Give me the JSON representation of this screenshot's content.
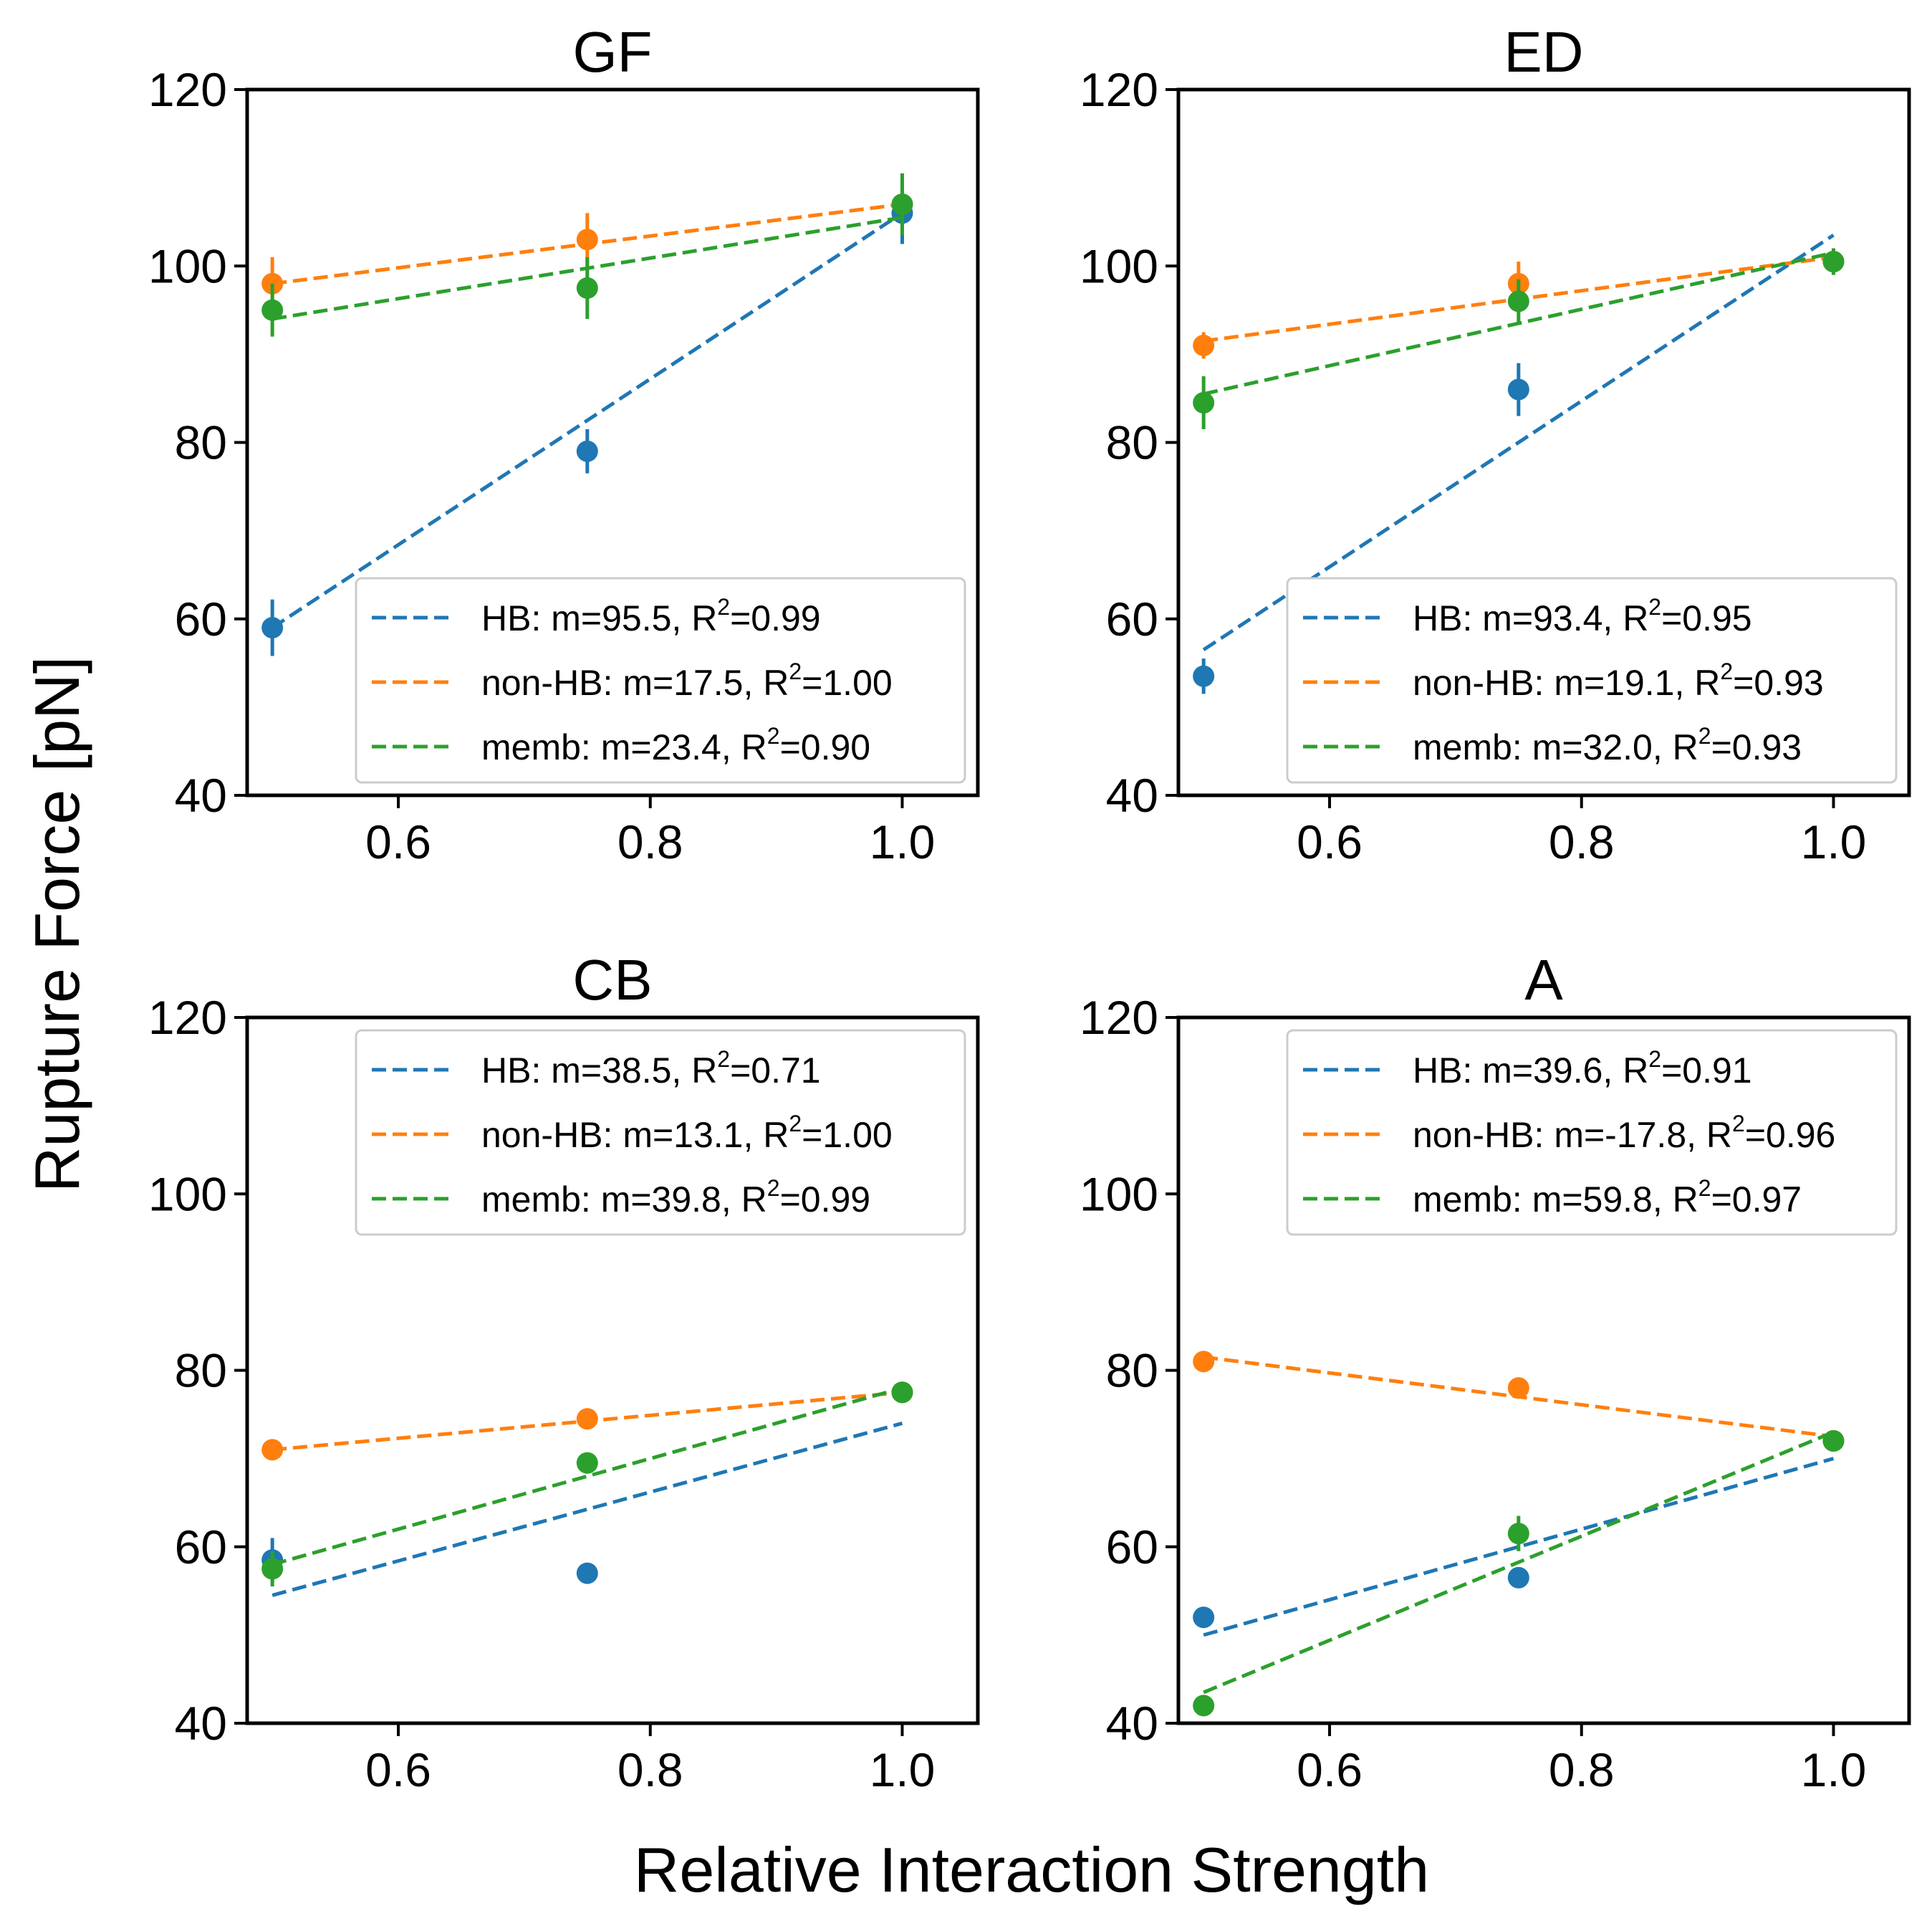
{
  "figure": {
    "ylabel": "Rupture Force [pN]",
    "xlabel": "Relative Interaction Strength"
  },
  "colors": {
    "HB": "#1f77b4",
    "non-HB": "#ff7f0e",
    "memb": "#2ca02c"
  },
  "chart_data": [
    {
      "type": "scatter",
      "title": "GF",
      "xlim": [
        0.48,
        1.06
      ],
      "ylim": [
        40,
        120
      ],
      "xticks": [
        0.6,
        0.8,
        1.0
      ],
      "yticks": [
        40,
        60,
        80,
        100,
        120
      ],
      "legend_position": "lower-right",
      "series": [
        {
          "name": "HB",
          "m": "95.5",
          "r2": "0.99",
          "x": [
            0.5,
            0.75,
            1.0
          ],
          "y": [
            59,
            79,
            106
          ],
          "err": [
            3.2,
            2.5,
            3.5
          ],
          "fit": [
            59,
            106
          ]
        },
        {
          "name": "non-HB",
          "m": "17.5",
          "r2": "1.00",
          "x": [
            0.5,
            0.75,
            1.0
          ],
          "y": [
            98,
            103,
            107
          ],
          "err": [
            3,
            3,
            3.5
          ],
          "fit": [
            98,
            107
          ]
        },
        {
          "name": "memb",
          "m": "23.4",
          "r2": "0.90",
          "x": [
            0.5,
            0.75,
            1.0
          ],
          "y": [
            95,
            97.5,
            107
          ],
          "err": [
            3,
            3.5,
            3.5
          ],
          "fit": [
            94,
            105.5
          ]
        }
      ]
    },
    {
      "type": "scatter",
      "title": "ED",
      "xlim": [
        0.48,
        1.06
      ],
      "ylim": [
        40,
        120
      ],
      "xticks": [
        0.6,
        0.8,
        1.0
      ],
      "yticks": [
        40,
        60,
        80,
        100,
        120
      ],
      "legend_position": "lower-right",
      "series": [
        {
          "name": "HB",
          "m": "93.4",
          "r2": "0.95",
          "x": [
            0.5,
            0.75,
            1.0
          ],
          "y": [
            53.5,
            86,
            100.5
          ],
          "err": [
            2,
            3,
            1.5
          ],
          "fit": [
            56.5,
            103.5
          ]
        },
        {
          "name": "non-HB",
          "m": "19.1",
          "r2": "0.93",
          "x": [
            0.5,
            0.75,
            1.0
          ],
          "y": [
            91,
            98,
            100.5
          ],
          "err": [
            1.5,
            2.5,
            1.5
          ],
          "fit": [
            91.5,
            101
          ]
        },
        {
          "name": "memb",
          "m": "32.0",
          "r2": "0.93",
          "x": [
            0.5,
            0.75,
            1.0
          ],
          "y": [
            84.5,
            96,
            100.5
          ],
          "err": [
            3,
            2.5,
            1.5
          ],
          "fit": [
            85.5,
            101.5
          ]
        }
      ]
    },
    {
      "type": "scatter",
      "title": "CB",
      "xlim": [
        0.48,
        1.06
      ],
      "ylim": [
        40,
        120
      ],
      "xticks": [
        0.6,
        0.8,
        1.0
      ],
      "yticks": [
        40,
        60,
        80,
        100,
        120
      ],
      "legend_position": "top-right",
      "series": [
        {
          "name": "HB",
          "m": "38.5",
          "r2": "0.71",
          "x": [
            0.5,
            0.75,
            1.0
          ],
          "y": [
            58.5,
            57,
            77.5
          ],
          "err": [
            2.5,
            1,
            1
          ],
          "fit": [
            54.5,
            74
          ]
        },
        {
          "name": "non-HB",
          "m": "13.1",
          "r2": "1.00",
          "x": [
            0.5,
            0.75,
            1.0
          ],
          "y": [
            71,
            74.5,
            77.5
          ],
          "err": [
            1.2,
            1.2,
            1
          ],
          "fit": [
            71,
            77.5
          ]
        },
        {
          "name": "memb",
          "m": "39.8",
          "r2": "0.99",
          "x": [
            0.5,
            0.75,
            1.0
          ],
          "y": [
            57.5,
            69.5,
            77.5
          ],
          "err": [
            2,
            1.2,
            1
          ],
          "fit": [
            58,
            78
          ]
        }
      ]
    },
    {
      "type": "scatter",
      "title": "A",
      "xlim": [
        0.48,
        1.06
      ],
      "ylim": [
        40,
        120
      ],
      "xticks": [
        0.6,
        0.8,
        1.0
      ],
      "yticks": [
        40,
        60,
        80,
        100,
        120
      ],
      "legend_position": "top-right",
      "series": [
        {
          "name": "HB",
          "m": "39.6",
          "r2": "0.91",
          "x": [
            0.5,
            0.75,
            1.0
          ],
          "y": [
            52,
            56.5,
            72
          ],
          "err": [
            1,
            1,
            1
          ],
          "fit": [
            50,
            70
          ]
        },
        {
          "name": "non-HB",
          "m": "-17.8",
          "r2": "0.96",
          "x": [
            0.5,
            0.75,
            1.0
          ],
          "y": [
            81,
            78,
            72
          ],
          "err": [
            1,
            1.2,
            1
          ],
          "fit": [
            81.5,
            72.5
          ]
        },
        {
          "name": "memb",
          "m": "59.8",
          "r2": "0.97",
          "x": [
            0.5,
            0.75,
            1.0
          ],
          "y": [
            42,
            61.5,
            72
          ],
          "err": [
            1,
            2,
            1
          ],
          "fit": [
            43.5,
            73
          ]
        }
      ]
    }
  ]
}
